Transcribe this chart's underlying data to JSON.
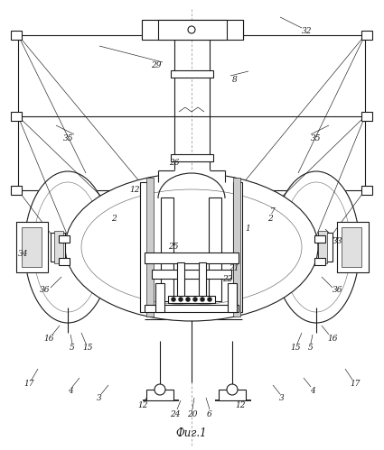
{
  "background_color": "#ffffff",
  "line_color": "#1a1a1a",
  "lw": 0.8,
  "tlw": 0.45,
  "caption": "Фиг.1",
  "dpi": 100,
  "fig_width": 4.25,
  "fig_height": 4.99
}
